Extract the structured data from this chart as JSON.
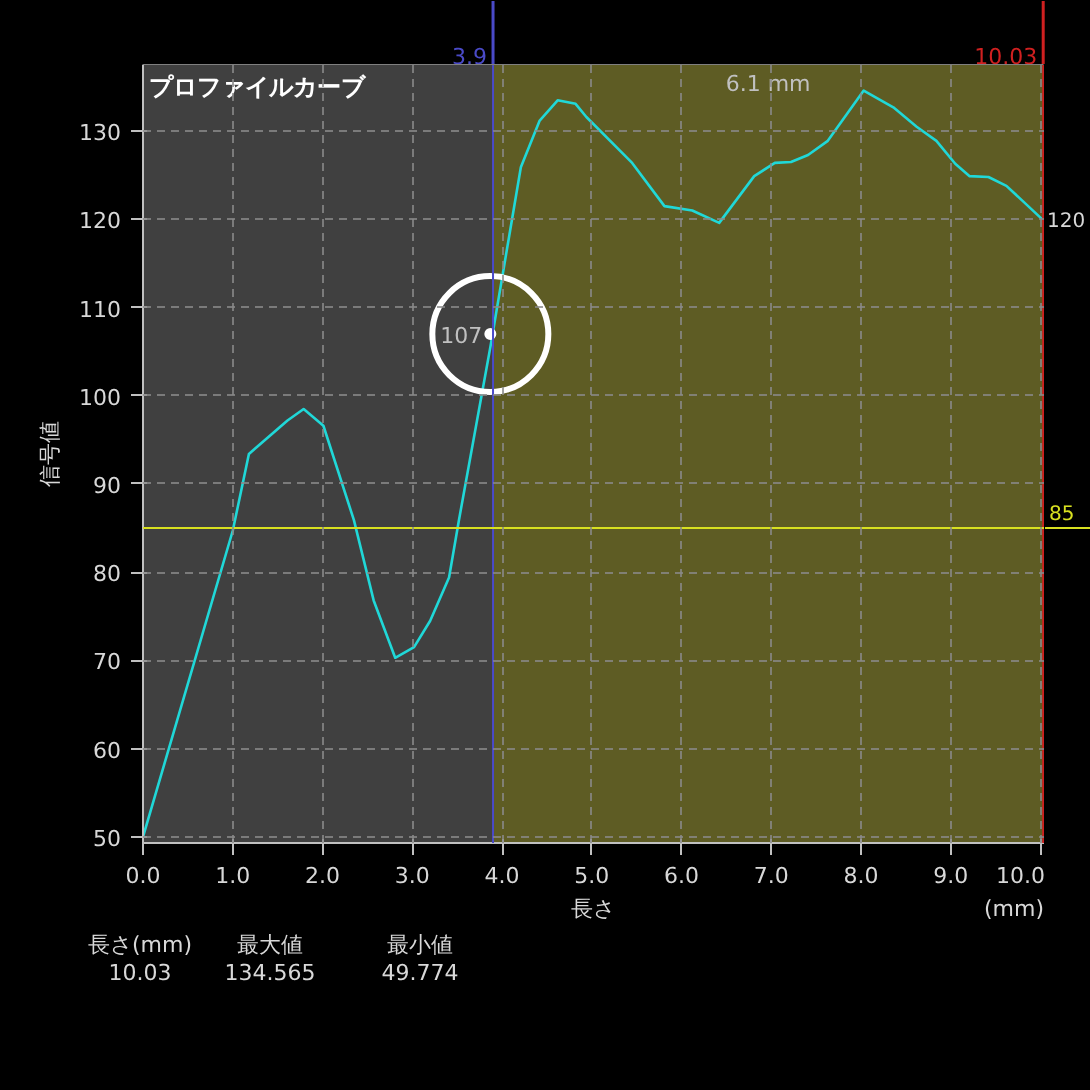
{
  "chart_data": {
    "type": "line",
    "title": "プロファイルカーブ",
    "xlabel": "長さ",
    "ylabel": "信号値",
    "x": [
      0,
      1.0,
      1.18,
      1.61,
      1.79,
      2.01,
      2.35,
      2.57,
      2.81,
      3.02,
      3.2,
      3.41,
      3.52,
      3.87,
      4.21,
      4.42,
      4.62,
      4.82,
      4.94,
      5.45,
      5.81,
      6.12,
      6.42,
      6.81,
      7.04,
      7.22,
      7.41,
      7.63,
      8.03,
      8.36,
      8.62,
      8.84,
      9.05,
      9.21,
      9.42,
      9.62,
      9.8,
      10.02
    ],
    "series": [
      {
        "color": "#20d8d8",
        "values": [
          50,
          84.7,
          93.4,
          97.2,
          98.5,
          96.6,
          85.9,
          76.8,
          70.3,
          71.5,
          74.5,
          79.4,
          85.9,
          105.5,
          125.9,
          131.2,
          133.5,
          133.1,
          131.6,
          126.4,
          121.5,
          121.0,
          119.6,
          124.9,
          126.4,
          126.5,
          127.3,
          128.9,
          134.6,
          132.7,
          130.5,
          128.9,
          126.3,
          124.9,
          124.8,
          123.8,
          122.1,
          120.0
        ]
      }
    ],
    "xlim": [
      0,
      10.05
    ],
    "ylim": [
      49.3,
      137.5
    ],
    "xticks": [
      {
        "value": 0,
        "label": "0.0"
      },
      {
        "value": 1,
        "label": "1.0"
      },
      {
        "value": 2,
        "label": "2.0"
      },
      {
        "value": 3,
        "label": "3.0"
      },
      {
        "value": 4,
        "label": "4.0"
      },
      {
        "value": 5,
        "label": "5.0"
      },
      {
        "value": 6,
        "label": "6.0"
      },
      {
        "value": 7,
        "label": "7.0"
      },
      {
        "value": 8,
        "label": "8.0"
      },
      {
        "value": 9,
        "label": "9.0"
      },
      {
        "value": 10,
        "label": "10.0"
      }
    ],
    "yticks": [
      50,
      60,
      70,
      80,
      90,
      100,
      110,
      120,
      130
    ],
    "grid": true,
    "marker": "none",
    "line_style": "solid",
    "bands": [
      {
        "axis": "x",
        "from": 0,
        "to": 3.9,
        "color": "#404040"
      },
      {
        "axis": "x",
        "from": 3.9,
        "to": 10.03,
        "label": "6.1 mm",
        "color": "#5e5c24"
      }
    ],
    "ref_lines": [
      {
        "axis": "x",
        "value": 3.9,
        "label": "3.9",
        "color": "#4a4ac8"
      },
      {
        "axis": "x",
        "value": 10.03,
        "label": "10.03",
        "color": "#d02020"
      },
      {
        "axis": "y",
        "value": 85,
        "label": "85",
        "color": "#d8e020"
      }
    ],
    "annotations": [
      {
        "text": "107",
        "x": 3.87,
        "y": 107
      },
      {
        "text": "120",
        "x": 10.02,
        "y": 120
      },
      "(mm)",
      "長さ(mm)",
      "10.03",
      "最大値",
      "134.565",
      "最小値",
      "49.774"
    ]
  }
}
